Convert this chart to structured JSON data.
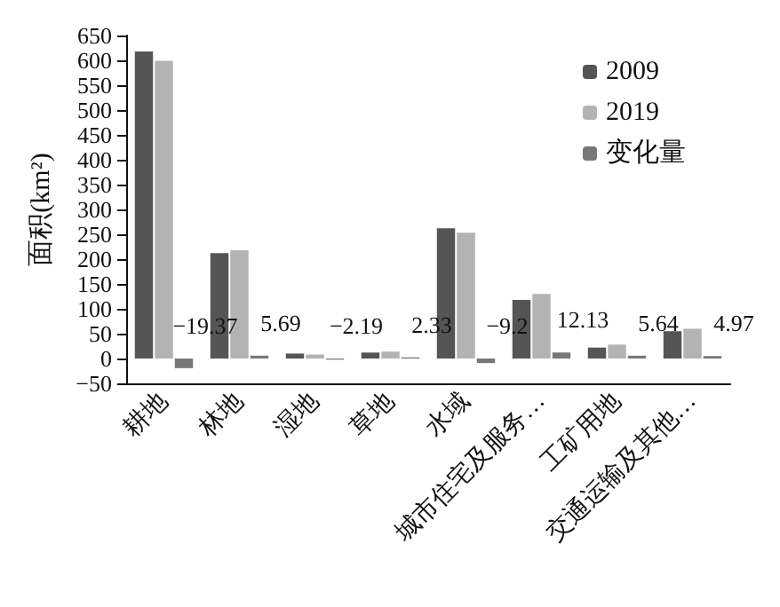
{
  "chart_data": {
    "type": "bar",
    "categories": [
      "耕地",
      "林地",
      "湿地",
      "草地",
      "水域",
      "城市住宅及服务…",
      "工矿用地",
      "交通运输及其他…"
    ],
    "series": [
      {
        "name": "2009",
        "color": "#555555",
        "values": [
          618,
          212,
          10,
          12,
          262,
          118,
          22,
          55
        ]
      },
      {
        "name": "2019",
        "color": "#b3b3b3",
        "values": [
          599,
          218,
          8,
          14,
          253,
          130,
          28,
          60
        ]
      },
      {
        "name": "变化量",
        "color": "#787878",
        "values": [
          -19.37,
          5.69,
          -2.19,
          2.33,
          -9.2,
          12.13,
          5.64,
          4.97
        ],
        "value_labels": [
          "−19.37",
          "5.69",
          "−2.19",
          "2.33",
          "−9.2",
          "12.13",
          "5.64",
          "4.97"
        ]
      }
    ],
    "ylabel": "面积(km²)",
    "ylim": [
      -50,
      650
    ],
    "yticks": [
      -50,
      0,
      50,
      100,
      150,
      200,
      250,
      300,
      350,
      400,
      450,
      500,
      550,
      600,
      650
    ],
    "legend": "top right",
    "grid": false
  }
}
